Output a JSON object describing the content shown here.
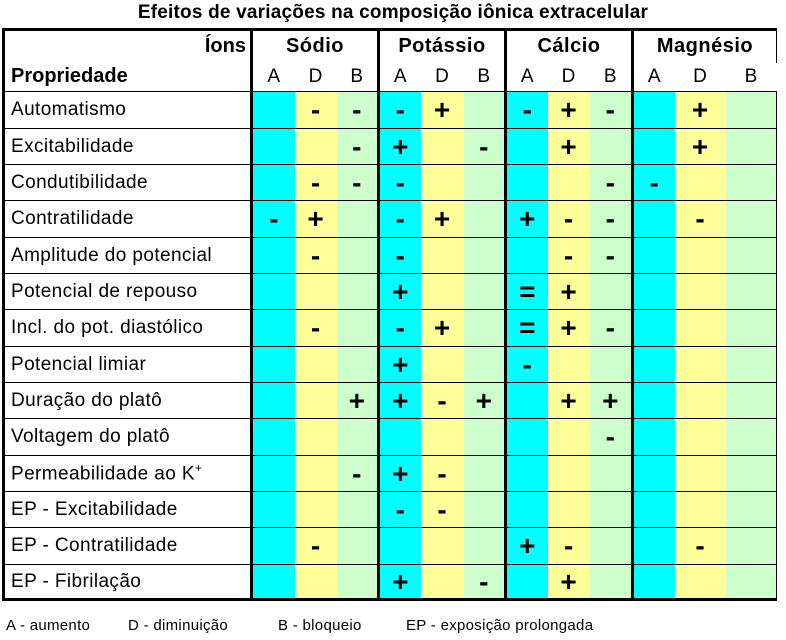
{
  "title": "Efeitos de  variações na composição iônica extracelular",
  "header": {
    "ions_label": "Íons",
    "property_label": "Propriedade",
    "ions": [
      "Sódio",
      "Potássio",
      "Cálcio",
      "Magnésio"
    ],
    "subcolumns": [
      "A",
      "D",
      "B"
    ]
  },
  "rows": [
    {
      "label": "Automatismo",
      "cells": [
        "",
        "-",
        "-",
        "-",
        "+",
        "",
        "-",
        "+",
        "-",
        "",
        "+",
        ""
      ]
    },
    {
      "label": "Excitabilidade",
      "cells": [
        "",
        "",
        "-",
        "+",
        "",
        "-",
        "",
        "+",
        "",
        "",
        "+",
        ""
      ]
    },
    {
      "label": "Condutibilidade",
      "cells": [
        "",
        "-",
        "-",
        "-",
        "",
        "",
        "",
        "",
        "-",
        "-",
        "",
        ""
      ]
    },
    {
      "label": "Contratilidade",
      "cells": [
        "-",
        "+",
        "",
        "-",
        "+",
        "",
        "+",
        "-",
        "-",
        "",
        "-",
        ""
      ]
    },
    {
      "label": "Amplitude do potencial",
      "cells": [
        "",
        "-",
        "",
        "-",
        "",
        "",
        "",
        "-",
        "-",
        "",
        "",
        ""
      ]
    },
    {
      "label": "Potencial de repouso",
      "cells": [
        "",
        "",
        "",
        "+",
        "",
        "",
        "=",
        "+",
        "",
        "",
        "",
        ""
      ]
    },
    {
      "label": "Incl. do pot. diastólico",
      "cells": [
        "",
        "-",
        "",
        "-",
        "+",
        "",
        "=",
        "+",
        "-",
        "",
        "",
        ""
      ]
    },
    {
      "label": "Potencial limiar",
      "cells": [
        "",
        "",
        "",
        "+",
        "",
        "",
        "-",
        "",
        "",
        "",
        "",
        ""
      ]
    },
    {
      "label": "Duração do platô",
      "cells": [
        "",
        "",
        "+",
        "+",
        "-",
        "+",
        "",
        "+",
        "+",
        "",
        "",
        ""
      ]
    },
    {
      "label": "Voltagem do platô",
      "cells": [
        "",
        "",
        "",
        "",
        "",
        "",
        "",
        "",
        "-",
        "",
        "",
        ""
      ]
    },
    {
      "label": "Permeabilidade ao K",
      "sup": "+",
      "cells": [
        "",
        "",
        "-",
        "+",
        "-",
        "",
        "",
        "",
        "",
        "",
        "",
        ""
      ]
    },
    {
      "label": "EP - Excitabilidade",
      "cells": [
        "",
        "",
        "",
        "-",
        "-",
        "",
        "",
        "",
        "",
        "",
        "",
        ""
      ]
    },
    {
      "label": "EP - Contratilidade",
      "cells": [
        "",
        "-",
        "",
        "",
        "",
        "",
        "+",
        "-",
        "",
        "",
        "-",
        ""
      ]
    },
    {
      "label": "EP - Fibrilação",
      "cells": [
        "",
        "",
        "",
        "+",
        "",
        "-",
        "",
        "+",
        "",
        "",
        "",
        ""
      ]
    }
  ],
  "legend": [
    "A - aumento",
    "D - diminuição",
    "B - bloqueio",
    "EP - exposição prolongada"
  ],
  "colors": {
    "A": "#00ffff",
    "D": "#ffff99",
    "B": "#ccffcc"
  }
}
